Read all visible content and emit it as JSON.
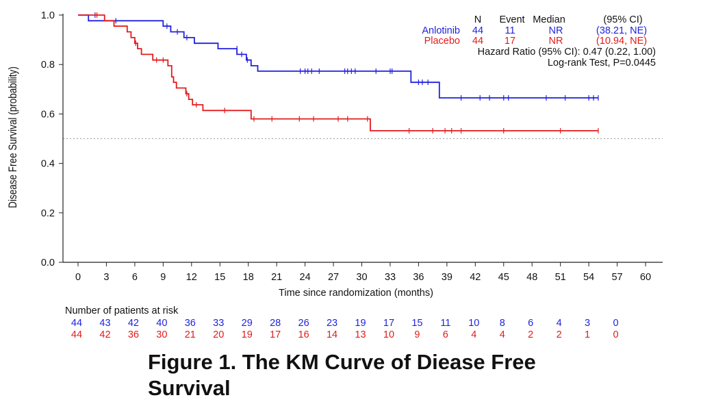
{
  "chart_data": {
    "type": "line",
    "title": "",
    "xlabel": "Time since randomization (months)",
    "ylabel": "Disease Free Survival (probability)",
    "xlim": [
      0,
      60
    ],
    "ylim": [
      0,
      1
    ],
    "x_ticks": [
      0,
      3,
      6,
      9,
      12,
      15,
      18,
      21,
      24,
      27,
      30,
      33,
      36,
      39,
      42,
      45,
      48,
      51,
      54,
      57,
      60
    ],
    "y_ticks": [
      0.0,
      0.2,
      0.4,
      0.6,
      0.8,
      1.0
    ],
    "reference_line_y": 0.5,
    "series": [
      {
        "name": "Anlotinib",
        "color": "#1f1fe0",
        "steps": [
          [
            0,
            1.0
          ],
          [
            1.1,
            0.977
          ],
          [
            9.0,
            0.955
          ],
          [
            9.8,
            0.932
          ],
          [
            11.2,
            0.909
          ],
          [
            12.3,
            0.886
          ],
          [
            14.8,
            0.864
          ],
          [
            16.8,
            0.841
          ],
          [
            17.8,
            0.818
          ],
          [
            18.3,
            0.795
          ],
          [
            19.0,
            0.773
          ],
          [
            35.2,
            0.728
          ],
          [
            38.2,
            0.665
          ],
          [
            55.0,
            0.665
          ]
        ],
        "censored": [
          [
            1.8,
            1.0
          ],
          [
            4.0,
            0.977
          ],
          [
            9.4,
            0.955
          ],
          [
            10.5,
            0.932
          ],
          [
            11.5,
            0.909
          ],
          [
            16.8,
            0.864
          ],
          [
            17.3,
            0.841
          ],
          [
            17.9,
            0.818
          ],
          [
            23.5,
            0.773
          ],
          [
            24.0,
            0.773
          ],
          [
            24.3,
            0.773
          ],
          [
            24.7,
            0.773
          ],
          [
            25.5,
            0.773
          ],
          [
            28.2,
            0.773
          ],
          [
            28.5,
            0.773
          ],
          [
            28.9,
            0.773
          ],
          [
            29.3,
            0.773
          ],
          [
            31.5,
            0.773
          ],
          [
            33.0,
            0.773
          ],
          [
            33.2,
            0.773
          ],
          [
            36.0,
            0.728
          ],
          [
            36.4,
            0.728
          ],
          [
            37.0,
            0.728
          ],
          [
            40.5,
            0.665
          ],
          [
            42.5,
            0.665
          ],
          [
            43.5,
            0.665
          ],
          [
            45.0,
            0.665
          ],
          [
            45.5,
            0.665
          ],
          [
            49.5,
            0.665
          ],
          [
            51.5,
            0.665
          ],
          [
            54.0,
            0.665
          ],
          [
            54.5,
            0.665
          ],
          [
            55.0,
            0.665
          ]
        ]
      },
      {
        "name": "Placebo",
        "color": "#e31a1c",
        "steps": [
          [
            0,
            1.0
          ],
          [
            2.8,
            0.977
          ],
          [
            3.8,
            0.955
          ],
          [
            5.2,
            0.932
          ],
          [
            5.6,
            0.909
          ],
          [
            6.0,
            0.886
          ],
          [
            6.3,
            0.864
          ],
          [
            6.7,
            0.841
          ],
          [
            7.9,
            0.818
          ],
          [
            9.5,
            0.795
          ],
          [
            9.9,
            0.75
          ],
          [
            10.1,
            0.728
          ],
          [
            10.4,
            0.705
          ],
          [
            11.4,
            0.682
          ],
          [
            11.7,
            0.659
          ],
          [
            12.1,
            0.637
          ],
          [
            13.2,
            0.614
          ],
          [
            18.3,
            0.58
          ],
          [
            30.9,
            0.532
          ],
          [
            55.0,
            0.532
          ]
        ],
        "censored": [
          [
            2.0,
            1.0
          ],
          [
            6.1,
            0.886
          ],
          [
            8.3,
            0.818
          ],
          [
            9.0,
            0.818
          ],
          [
            11.5,
            0.682
          ],
          [
            12.5,
            0.637
          ],
          [
            15.5,
            0.614
          ],
          [
            18.6,
            0.58
          ],
          [
            20.5,
            0.58
          ],
          [
            23.4,
            0.58
          ],
          [
            24.9,
            0.58
          ],
          [
            27.5,
            0.58
          ],
          [
            28.5,
            0.58
          ],
          [
            30.6,
            0.58
          ],
          [
            35.0,
            0.532
          ],
          [
            37.5,
            0.532
          ],
          [
            38.8,
            0.532
          ],
          [
            39.5,
            0.532
          ],
          [
            40.5,
            0.532
          ],
          [
            45.0,
            0.532
          ],
          [
            51.0,
            0.532
          ],
          [
            55.0,
            0.532
          ]
        ]
      }
    ],
    "legend": {
      "placement": "top-right",
      "headers": [
        "N",
        "Event",
        "Median",
        "(95% CI)"
      ],
      "rows": [
        {
          "name": "Anlotinib",
          "n": "44",
          "event": "11",
          "median": "NR",
          "ci": "(38.21, NE)"
        },
        {
          "name": "Placebo",
          "n": "44",
          "event": "17",
          "median": "NR",
          "ci": "(10.94, NE)"
        }
      ],
      "hazard_text": "Hazard Ratio (95% CI): 0.47 (0.22, 1.00)",
      "logrank_text": "Log-rank Test, P=0.0445"
    },
    "at_risk": {
      "title": "Number of patients at risk",
      "times": [
        0,
        3,
        6,
        9,
        12,
        15,
        18,
        21,
        24,
        27,
        30,
        33,
        36,
        39,
        42,
        45,
        48,
        51,
        54,
        57
      ],
      "Anlotinib": [
        44,
        43,
        42,
        40,
        36,
        33,
        29,
        28,
        26,
        23,
        19,
        17,
        15,
        11,
        10,
        8,
        6,
        4,
        3,
        0
      ],
      "Placebo": [
        44,
        42,
        36,
        30,
        21,
        20,
        19,
        17,
        16,
        14,
        13,
        10,
        9,
        6,
        4,
        4,
        2,
        2,
        1,
        0
      ]
    }
  },
  "caption": "Figure 1. The KM Curve of Diease Free Survival"
}
